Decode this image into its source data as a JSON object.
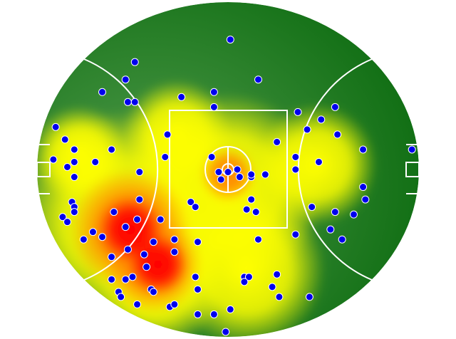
{
  "chart_data": {
    "type": "heatmap",
    "overlay": "scatter",
    "surface": "AFL oval field",
    "xlim": [
      -82,
      82
    ],
    "ylim": [
      -67,
      67
    ],
    "grid": false,
    "legend": "none",
    "colors": {
      "field_light": "#4f9a4a",
      "field_dark": "#0a6a0e",
      "low": "#7fbf2a",
      "mid": "#ffff00",
      "high": "#ff8800",
      "peak": "#ff0000",
      "point_fill": "#0000ee",
      "point_stroke": "#ffffff",
      "lines": "#ffffff"
    },
    "density_hotspots": [
      {
        "x": -45,
        "y": -20,
        "r": 36,
        "level": "mid"
      },
      {
        "x": 0,
        "y": -8,
        "r": 32,
        "level": "mid"
      },
      {
        "x": 8,
        "y": -40,
        "r": 26,
        "level": "mid"
      },
      {
        "x": 38,
        "y": 2,
        "r": 20,
        "level": "mid"
      },
      {
        "x": -64,
        "y": 6,
        "r": 16,
        "level": "mid"
      },
      {
        "x": -22,
        "y": 14,
        "r": 18,
        "level": "mid"
      },
      {
        "x": -30,
        "y": -45,
        "r": 22,
        "level": "mid"
      },
      {
        "x": -42,
        "y": -24,
        "r": 20,
        "level": "high"
      },
      {
        "x": -32,
        "y": -38,
        "r": 16,
        "level": "high"
      },
      {
        "x": 0,
        "y": -2,
        "r": 9,
        "level": "high"
      },
      {
        "x": -42,
        "y": -24,
        "r": 11,
        "level": "peak"
      },
      {
        "x": -30,
        "y": -38,
        "r": 10,
        "level": "peak"
      }
    ],
    "points": [
      [
        1,
        52
      ],
      [
        -40,
        43
      ],
      [
        -44,
        36
      ],
      [
        13,
        36
      ],
      [
        -54,
        31
      ],
      [
        -20,
        29
      ],
      [
        -6,
        31
      ],
      [
        -43,
        27
      ],
      [
        -40,
        27
      ],
      [
        -6,
        25
      ],
      [
        30,
        23
      ],
      [
        46,
        25
      ],
      [
        40,
        20
      ],
      [
        -74,
        17
      ],
      [
        34,
        16
      ],
      [
        47,
        14
      ],
      [
        -70,
        12
      ],
      [
        -26,
        14
      ],
      [
        21,
        11
      ],
      [
        -66,
        8
      ],
      [
        -50,
        8
      ],
      [
        58,
        8
      ],
      [
        79,
        8
      ],
      [
        -75,
        4
      ],
      [
        -66,
        3
      ],
      [
        -57,
        3
      ],
      [
        -69,
        1
      ],
      [
        -27,
        5
      ],
      [
        -7,
        5
      ],
      [
        29,
        5
      ],
      [
        39,
        3
      ],
      [
        -38,
        -1
      ],
      [
        -66,
        -3
      ],
      [
        -4,
        -1
      ],
      [
        0,
        -1
      ],
      [
        4,
        0
      ],
      [
        5,
        -3
      ],
      [
        -3,
        -4
      ],
      [
        10,
        -3
      ],
      [
        10,
        -2
      ],
      [
        16,
        -2
      ],
      [
        29,
        0
      ],
      [
        58,
        -7
      ],
      [
        59,
        -12
      ],
      [
        -67,
        -13
      ],
      [
        -66,
        -15
      ],
      [
        -38,
        -12
      ],
      [
        -16,
        -13
      ],
      [
        -14,
        -15
      ],
      [
        10,
        -12
      ],
      [
        8,
        -16
      ],
      [
        12,
        -17
      ],
      [
        36,
        -15
      ],
      [
        46,
        -17
      ],
      [
        54,
        -18
      ],
      [
        -71,
        -19
      ],
      [
        -69,
        -21
      ],
      [
        -66,
        -17
      ],
      [
        -49,
        -17
      ],
      [
        -39,
        -20
      ],
      [
        -29,
        -20
      ],
      [
        -44,
        -23
      ],
      [
        -58,
        -25
      ],
      [
        -54,
        -27
      ],
      [
        -62,
        -28
      ],
      [
        -23,
        -28
      ],
      [
        -13,
        -29
      ],
      [
        13,
        -28
      ],
      [
        29,
        -26
      ],
      [
        44,
        -24
      ],
      [
        49,
        -28
      ],
      [
        -32,
        -29
      ],
      [
        -43,
        -32
      ],
      [
        -50,
        -35
      ],
      [
        -36,
        -34
      ],
      [
        -23,
        -33
      ],
      [
        -35,
        -39
      ],
      [
        -41,
        -43
      ],
      [
        -50,
        -44
      ],
      [
        -44,
        -44
      ],
      [
        -14,
        -43
      ],
      [
        7,
        -43
      ],
      [
        9,
        -43
      ],
      [
        7,
        -45
      ],
      [
        21,
        -42
      ],
      [
        19,
        -47
      ],
      [
        22,
        -51
      ],
      [
        35,
        -51
      ],
      [
        -47,
        -49
      ],
      [
        -46,
        -51
      ],
      [
        -33,
        -48
      ],
      [
        -32,
        -49
      ],
      [
        -13,
        -48
      ],
      [
        -39,
        -54
      ],
      [
        -25,
        -55
      ],
      [
        -23,
        -54
      ],
      [
        -13,
        -58
      ],
      [
        -6,
        -58
      ],
      [
        1,
        -56
      ],
      [
        -1,
        -65
      ]
    ]
  }
}
